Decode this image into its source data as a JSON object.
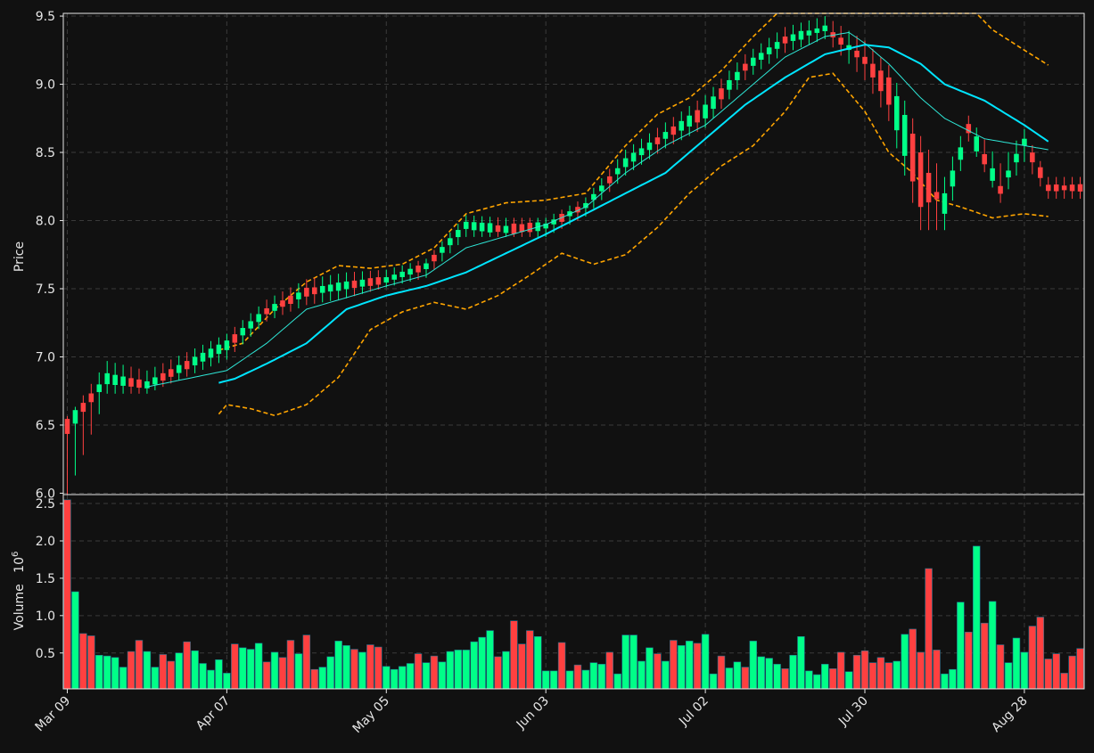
{
  "chart_data": [
    {
      "type": "candlestick",
      "ylabel": "Price",
      "ylim": [
        5.99,
        9.52
      ],
      "yticks": [
        "6.0",
        "6.5",
        "7.0",
        "7.5",
        "8.0",
        "8.5",
        "9.0",
        "9.5"
      ],
      "ytick_values": [
        6.0,
        6.5,
        7.0,
        7.5,
        8.0,
        8.5,
        9.0,
        9.5
      ],
      "grid": true,
      "colors": {
        "up": "#00ff88",
        "down": "#ff4040",
        "ma_fast": "#2ee6d6",
        "ma_slow": "#00e5ff",
        "bands": "#ffa500",
        "background": "#111111"
      },
      "ohlc_anchors": [
        {
          "day": 0,
          "open": 6.51,
          "high": 6.53,
          "low": 6.0,
          "close": 6.47
        },
        {
          "day": 5,
          "open": 6.8,
          "high": 6.95,
          "low": 6.75,
          "close": 6.88
        },
        {
          "day": 10,
          "open": 6.77,
          "high": 6.88,
          "low": 6.75,
          "close": 6.82
        },
        {
          "day": 20,
          "open": 7.05,
          "high": 7.15,
          "low": 7.0,
          "close": 7.12
        },
        {
          "day": 25,
          "open": 7.32,
          "high": 7.4,
          "low": 7.28,
          "close": 7.35
        },
        {
          "day": 30,
          "open": 7.45,
          "high": 7.55,
          "low": 7.4,
          "close": 7.5
        },
        {
          "day": 35,
          "open": 7.5,
          "high": 7.6,
          "low": 7.45,
          "close": 7.55
        },
        {
          "day": 40,
          "open": 7.55,
          "high": 7.62,
          "low": 7.53,
          "close": 7.58
        },
        {
          "day": 45,
          "open": 7.65,
          "high": 7.7,
          "low": 7.6,
          "close": 7.68
        },
        {
          "day": 50,
          "open": 7.95,
          "high": 8.02,
          "low": 7.9,
          "close": 7.98
        },
        {
          "day": 55,
          "open": 7.92,
          "high": 8.0,
          "low": 7.9,
          "close": 7.95
        },
        {
          "day": 60,
          "open": 7.95,
          "high": 8.0,
          "low": 7.9,
          "close": 7.97
        },
        {
          "day": 65,
          "open": 8.1,
          "high": 8.15,
          "low": 8.05,
          "close": 8.12
        },
        {
          "day": 70,
          "open": 8.4,
          "high": 8.5,
          "low": 8.35,
          "close": 8.45
        },
        {
          "day": 75,
          "open": 8.6,
          "high": 8.7,
          "low": 8.55,
          "close": 8.65
        },
        {
          "day": 80,
          "open": 8.75,
          "high": 8.9,
          "low": 8.7,
          "close": 8.85
        },
        {
          "day": 85,
          "open": 9.1,
          "high": 9.2,
          "low": 9.05,
          "close": 9.15
        },
        {
          "day": 90,
          "open": 9.3,
          "high": 9.4,
          "low": 9.25,
          "close": 9.35
        },
        {
          "day": 95,
          "open": 9.4,
          "high": 9.48,
          "low": 9.35,
          "close": 9.42
        },
        {
          "day": 100,
          "open": 9.2,
          "high": 9.3,
          "low": 9.05,
          "close": 9.15
        },
        {
          "day": 103,
          "open": 9.05,
          "high": 9.12,
          "low": 8.75,
          "close": 8.85
        },
        {
          "day": 107,
          "open": 8.5,
          "high": 8.6,
          "low": 7.95,
          "close": 8.1
        },
        {
          "day": 110,
          "open": 8.05,
          "high": 8.3,
          "low": 7.95,
          "close": 8.2
        },
        {
          "day": 113,
          "open": 8.65,
          "high": 8.75,
          "low": 8.6,
          "close": 8.7
        },
        {
          "day": 117,
          "open": 8.2,
          "high": 8.4,
          "low": 8.15,
          "close": 8.25
        },
        {
          "day": 120,
          "open": 8.55,
          "high": 8.65,
          "low": 8.45,
          "close": 8.6
        },
        {
          "day": 123,
          "open": 8.25,
          "high": 8.3,
          "low": 8.18,
          "close": 8.23
        }
      ],
      "ma_fast_anchors": [
        [
          10,
          6.78
        ],
        [
          20,
          6.9
        ],
        [
          25,
          7.1
        ],
        [
          30,
          7.35
        ],
        [
          40,
          7.52
        ],
        [
          45,
          7.6
        ],
        [
          50,
          7.8
        ],
        [
          60,
          7.97
        ],
        [
          65,
          8.1
        ],
        [
          70,
          8.35
        ],
        [
          75,
          8.55
        ],
        [
          80,
          8.7
        ],
        [
          85,
          8.95
        ],
        [
          90,
          9.2
        ],
        [
          95,
          9.35
        ],
        [
          98,
          9.38
        ],
        [
          100,
          9.3
        ],
        [
          103,
          9.15
        ],
        [
          107,
          8.9
        ],
        [
          110,
          8.75
        ],
        [
          115,
          8.6
        ],
        [
          120,
          8.55
        ],
        [
          123,
          8.52
        ]
      ],
      "ma_slow_anchors": [
        [
          19,
          6.81
        ],
        [
          21,
          6.84
        ],
        [
          25,
          6.95
        ],
        [
          30,
          7.1
        ],
        [
          35,
          7.35
        ],
        [
          40,
          7.45
        ],
        [
          45,
          7.52
        ],
        [
          50,
          7.62
        ],
        [
          55,
          7.76
        ],
        [
          60,
          7.9
        ],
        [
          65,
          8.05
        ],
        [
          70,
          8.2
        ],
        [
          75,
          8.35
        ],
        [
          80,
          8.6
        ],
        [
          85,
          8.85
        ],
        [
          90,
          9.05
        ],
        [
          95,
          9.22
        ],
        [
          100,
          9.29
        ],
        [
          103,
          9.27
        ],
        [
          107,
          9.15
        ],
        [
          110,
          9.0
        ],
        [
          115,
          8.88
        ],
        [
          120,
          8.7
        ],
        [
          123,
          8.58
        ]
      ],
      "upper_band_anchors": [
        [
          19,
          7.05
        ],
        [
          22,
          7.1
        ],
        [
          26,
          7.35
        ],
        [
          30,
          7.55
        ],
        [
          34,
          7.67
        ],
        [
          38,
          7.65
        ],
        [
          42,
          7.68
        ],
        [
          46,
          7.8
        ],
        [
          50,
          8.05
        ],
        [
          55,
          8.13
        ],
        [
          60,
          8.15
        ],
        [
          65,
          8.2
        ],
        [
          70,
          8.55
        ],
        [
          74,
          8.78
        ],
        [
          78,
          8.9
        ],
        [
          82,
          9.1
        ],
        [
          86,
          9.35
        ],
        [
          89,
          9.52
        ],
        [
          114,
          9.52
        ],
        [
          116,
          9.4
        ],
        [
          120,
          9.25
        ],
        [
          123,
          9.14
        ]
      ],
      "lower_band_anchors": [
        [
          19,
          6.58
        ],
        [
          20,
          6.65
        ],
        [
          23,
          6.62
        ],
        [
          26,
          6.57
        ],
        [
          30,
          6.65
        ],
        [
          34,
          6.85
        ],
        [
          38,
          7.2
        ],
        [
          42,
          7.33
        ],
        [
          46,
          7.4
        ],
        [
          50,
          7.35
        ],
        [
          54,
          7.45
        ],
        [
          58,
          7.6
        ],
        [
          62,
          7.76
        ],
        [
          66,
          7.68
        ],
        [
          70,
          7.75
        ],
        [
          74,
          7.95
        ],
        [
          78,
          8.2
        ],
        [
          82,
          8.4
        ],
        [
          86,
          8.55
        ],
        [
          90,
          8.8
        ],
        [
          93,
          9.05
        ],
        [
          96,
          9.08
        ],
        [
          100,
          8.8
        ],
        [
          103,
          8.5
        ],
        [
          106,
          8.35
        ],
        [
          109,
          8.15
        ],
        [
          112,
          8.1
        ],
        [
          116,
          8.02
        ],
        [
          120,
          8.05
        ],
        [
          123,
          8.03
        ]
      ]
    },
    {
      "type": "bar",
      "ylabel": "Volume",
      "ylabel_exponent": "6",
      "ylim": [
        0.02,
        2.62
      ],
      "yticks": [
        "0.5",
        "1.0",
        "1.5",
        "2.0",
        "2.5"
      ],
      "ytick_values": [
        0.5,
        1.0,
        1.5,
        2.0,
        2.5
      ],
      "grid": true,
      "values": [
        2.55,
        1.32,
        0.76,
        0.73,
        0.47,
        0.46,
        0.44,
        0.31,
        0.52,
        0.67,
        0.52,
        0.31,
        0.48,
        0.39,
        0.5,
        0.65,
        0.53,
        0.36,
        0.27,
        0.41,
        0.23,
        0.62,
        0.57,
        0.55,
        0.63,
        0.38,
        0.51,
        0.44,
        0.67,
        0.49,
        0.74,
        0.28,
        0.31,
        0.45,
        0.66,
        0.6,
        0.55,
        0.51,
        0.61,
        0.58,
        0.32,
        0.28,
        0.32,
        0.36,
        0.49,
        0.37,
        0.46,
        0.38,
        0.52,
        0.54,
        0.54,
        0.65,
        0.71,
        0.8,
        0.45,
        0.52,
        0.93,
        0.62,
        0.8,
        0.72,
        0.26,
        0.26,
        0.64,
        0.26,
        0.34,
        0.27,
        0.37,
        0.35,
        0.51,
        0.22,
        0.74,
        0.74,
        0.39,
        0.57,
        0.49,
        0.39,
        0.67,
        0.6,
        0.66,
        0.63,
        0.75,
        0.22,
        0.46,
        0.3,
        0.38,
        0.31,
        0.66,
        0.45,
        0.43,
        0.35,
        0.29,
        0.47,
        0.72,
        0.26,
        0.21,
        0.35,
        0.29,
        0.51,
        0.25,
        0.47,
        0.53,
        0.37,
        0.44,
        0.37,
        0.39,
        0.75,
        0.82,
        0.51,
        1.63,
        0.54,
        0.22,
        0.28,
        1.18,
        0.78,
        1.93,
        0.9,
        1.19,
        0.61,
        0.37,
        0.7,
        0.51,
        0.86,
        0.98,
        0.42,
        0.49,
        0.23,
        0.46,
        0.56
      ],
      "directions": "DUDDUUUUDDUUDDUDUUUUUDUUUDUDDUDDUUUUDUDDUUUUDUDUUUUUUUDUDDDUUUDUDUUUDUUUUUDUDUUDUUDUUDUUUUDUUUUUDDUDDDDDUUDDDDUUUDUDUDUUUD"
    }
  ],
  "xaxis": {
    "ticks": [
      "Mar 09",
      "Apr 07",
      "May 05",
      "Jun 03",
      "Jul 02",
      "Jul 30",
      "Aug 28"
    ],
    "tick_days": [
      0,
      20,
      40,
      60,
      80,
      100,
      120
    ],
    "n_days": 128
  }
}
